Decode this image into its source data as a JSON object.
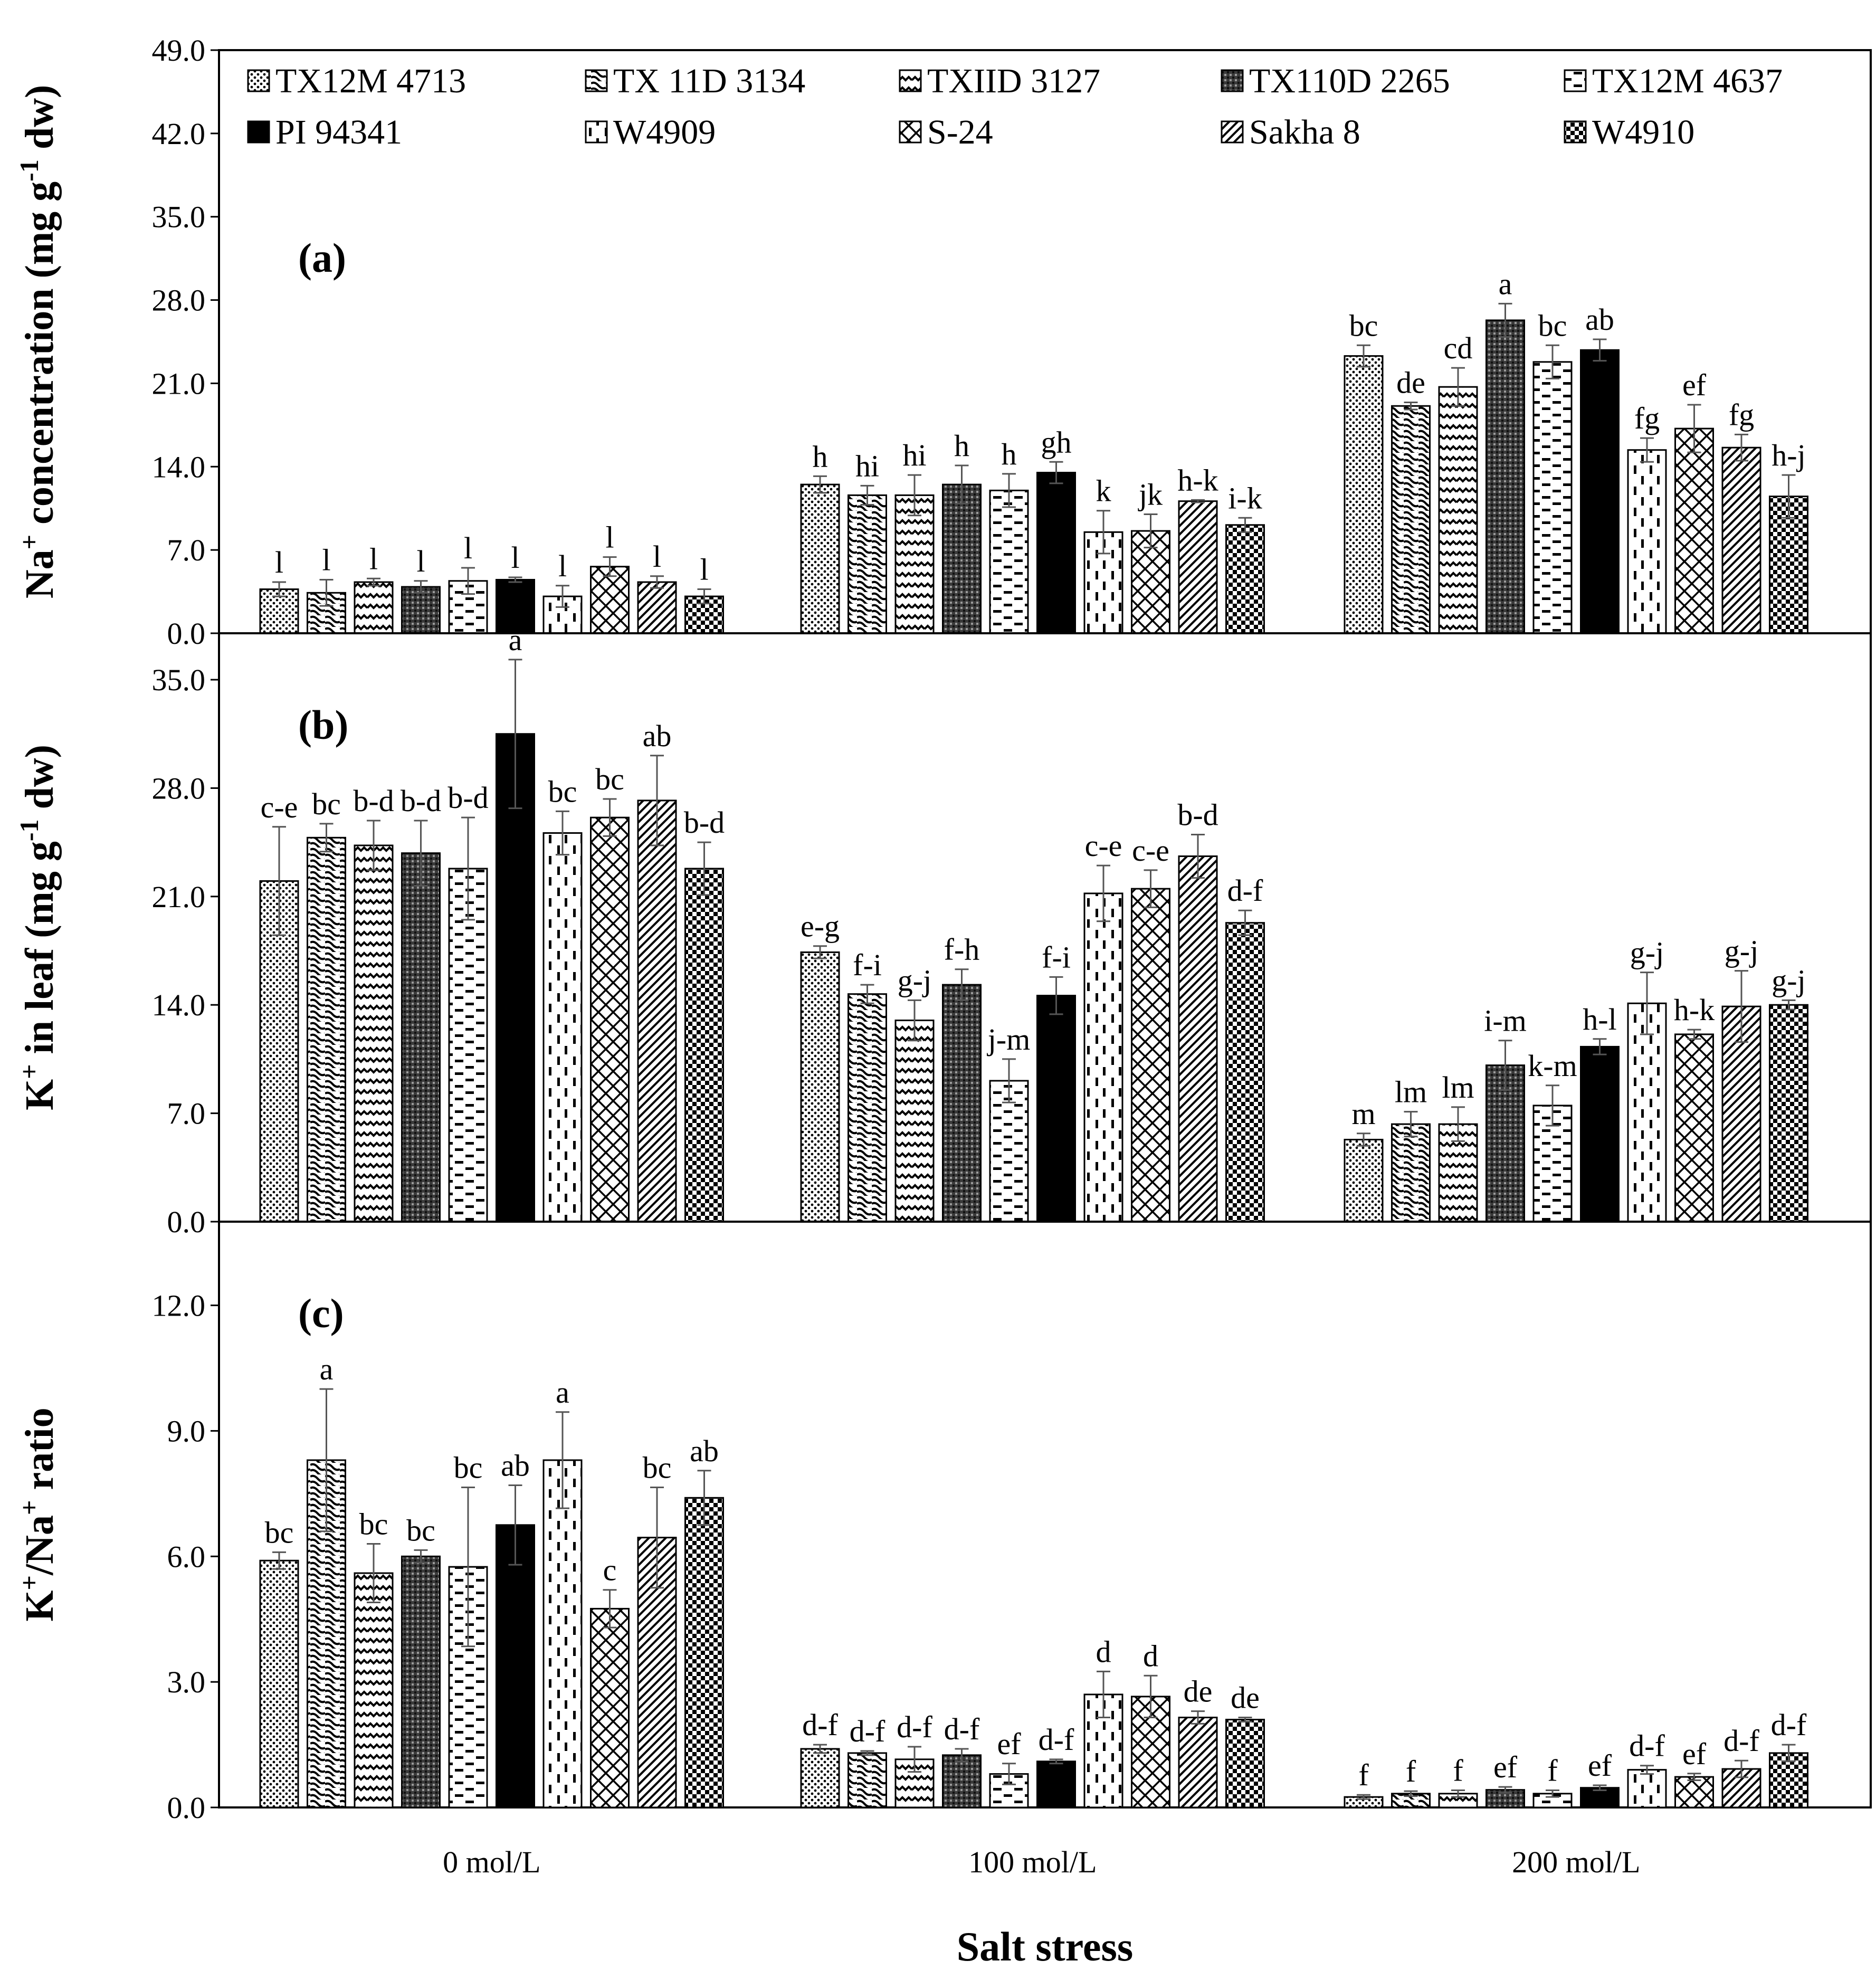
{
  "figure": {
    "x_title": "Salt stress",
    "groups": [
      "0 mol/L",
      "100 mol/L",
      "200 mol/L"
    ]
  },
  "legend": [
    {
      "name": "TX12M 4713",
      "pattern": "dots"
    },
    {
      "name": "TX 11D 3134",
      "pattern": "wave"
    },
    {
      "name": "TXIID 3127",
      "pattern": "zigzag"
    },
    {
      "name": "TX110D 2265",
      "pattern": "dark-grid"
    },
    {
      "name": "TX12M 4637",
      "pattern": "hdash"
    },
    {
      "name": "PI 94341",
      "pattern": "solid"
    },
    {
      "name": "W4909",
      "pattern": "vdash"
    },
    {
      "name": "S-24",
      "pattern": "cross"
    },
    {
      "name": "Sakha 8",
      "pattern": "diag"
    },
    {
      "name": "W4910",
      "pattern": "checker"
    }
  ],
  "colors": {
    "ink": "#000000",
    "grid_tick": "#000000",
    "errorbar": "#555555",
    "background": "#ffffff"
  },
  "chart_data": [
    {
      "type": "bar",
      "panel_label": "(a)",
      "ylabel_parts": [
        "Na",
        "+",
        " concentration (mg g",
        "-1",
        " dw)"
      ],
      "ylim": [
        0,
        49
      ],
      "yticks": [
        "0.0",
        "7.0",
        "14.0",
        "21.0",
        "28.0",
        "35.0",
        "42.0",
        "49.0"
      ],
      "categories": [
        "0 mol/L",
        "100 mol/L",
        "200 mol/L"
      ],
      "series": [
        {
          "name": "TX12M 4713",
          "values": [
            3.7,
            12.5,
            23.3
          ],
          "errors": [
            0.6,
            0.7,
            0.9
          ],
          "letters": [
            "l",
            "h",
            "bc"
          ]
        },
        {
          "name": "TX 11D 3134",
          "values": [
            3.4,
            11.6,
            19.1
          ],
          "errors": [
            1.1,
            0.8,
            0.3
          ],
          "letters": [
            "l",
            "hi",
            "de"
          ]
        },
        {
          "name": "TXIID 3127",
          "values": [
            4.3,
            11.6,
            20.7
          ],
          "errors": [
            0.3,
            1.7,
            1.6
          ],
          "letters": [
            "l",
            "hi",
            "cd"
          ]
        },
        {
          "name": "TX110D 2265",
          "values": [
            3.9,
            12.5,
            26.3
          ],
          "errors": [
            0.5,
            1.6,
            1.4
          ],
          "letters": [
            "l",
            "h",
            "a"
          ]
        },
        {
          "name": "TX12M 4637",
          "values": [
            4.4,
            12.0,
            22.8
          ],
          "errors": [
            1.1,
            1.4,
            1.4
          ],
          "letters": [
            "l",
            "h",
            "bc"
          ]
        },
        {
          "name": "PI 94341",
          "values": [
            4.5,
            13.5,
            23.8
          ],
          "errors": [
            0.2,
            0.9,
            0.9
          ],
          "letters": [
            "l",
            "gh",
            "ab"
          ]
        },
        {
          "name": "W4909",
          "values": [
            3.1,
            8.5,
            15.4
          ],
          "errors": [
            0.9,
            1.8,
            1.0
          ],
          "letters": [
            "l",
            "k",
            "fg"
          ]
        },
        {
          "name": "S-24",
          "values": [
            5.6,
            8.6,
            17.2
          ],
          "errors": [
            0.8,
            1.4,
            2.0
          ],
          "letters": [
            "l",
            "jk",
            "ef"
          ]
        },
        {
          "name": "Sakha 8",
          "values": [
            4.3,
            11.1,
            15.6
          ],
          "errors": [
            0.5,
            0.1,
            1.1
          ],
          "letters": [
            "l",
            "h-k",
            "fg"
          ]
        },
        {
          "name": "W4910",
          "values": [
            3.1,
            9.1,
            11.5
          ],
          "errors": [
            0.6,
            0.6,
            1.8
          ],
          "letters": [
            "l",
            "i-k",
            "h-j"
          ]
        }
      ]
    },
    {
      "type": "bar",
      "panel_label": "(b)",
      "ylabel_parts": [
        "K",
        "+",
        " in leaf (mg g",
        "-1",
        " dw)"
      ],
      "ylim": [
        0,
        38
      ],
      "yticks": [
        "0.0",
        "7.0",
        "14.0",
        "21.0",
        "28.0",
        "35.0"
      ],
      "categories": [
        "0 mol/L",
        "100 mol/L",
        "200 mol/L"
      ],
      "series": [
        {
          "name": "TX12M 4713",
          "values": [
            22.0,
            17.4,
            5.3
          ],
          "errors": [
            3.5,
            0.4,
            0.4
          ],
          "letters": [
            "c-e",
            "e-g",
            "m"
          ]
        },
        {
          "name": "TX 11D 3134",
          "values": [
            24.8,
            14.7,
            6.3
          ],
          "errors": [
            0.9,
            0.6,
            0.8
          ],
          "letters": [
            "bc",
            "f-i",
            "lm"
          ]
        },
        {
          "name": "TXIID 3127",
          "values": [
            24.3,
            13.0,
            6.3
          ],
          "errors": [
            1.6,
            1.3,
            1.1
          ],
          "letters": [
            "b-d",
            "g-j",
            "lm"
          ]
        },
        {
          "name": "TX110D 2265",
          "values": [
            23.8,
            15.3,
            10.1
          ],
          "errors": [
            2.1,
            1.0,
            1.6
          ],
          "letters": [
            "b-d",
            "f-h",
            "i-m"
          ]
        },
        {
          "name": "TX12M 4637",
          "values": [
            22.8,
            9.1,
            7.5
          ],
          "errors": [
            3.3,
            1.4,
            1.3
          ],
          "letters": [
            "b-d",
            "j-m",
            "k-m"
          ]
        },
        {
          "name": "PI 94341",
          "values": [
            31.5,
            14.6,
            11.3
          ],
          "errors": [
            4.8,
            1.2,
            0.5
          ],
          "letters": [
            "a",
            "f-i",
            "h-l"
          ]
        },
        {
          "name": "W4909",
          "values": [
            25.1,
            21.2,
            14.1
          ],
          "errors": [
            1.4,
            1.8,
            2.0
          ],
          "letters": [
            "bc",
            "c-e",
            "g-j"
          ]
        },
        {
          "name": "S-24",
          "values": [
            26.1,
            21.5,
            12.1
          ],
          "errors": [
            1.2,
            1.2,
            0.3
          ],
          "letters": [
            "bc",
            "c-e",
            "h-k"
          ]
        },
        {
          "name": "Sakha 8",
          "values": [
            27.2,
            23.6,
            13.9
          ],
          "errors": [
            2.9,
            1.4,
            2.3
          ],
          "letters": [
            "ab",
            "b-d",
            "g-j"
          ]
        },
        {
          "name": "W4910",
          "values": [
            22.8,
            19.3,
            14.0
          ],
          "errors": [
            1.7,
            0.8,
            0.3
          ],
          "letters": [
            "b-d",
            "d-f",
            "g-j"
          ]
        }
      ]
    },
    {
      "type": "bar",
      "panel_label": "(c)",
      "ylabel_parts": [
        "K",
        "+",
        "/Na",
        "+",
        " ratio"
      ],
      "ylim": [
        0,
        14
      ],
      "yticks": [
        "0.0",
        "3.0",
        "6.0",
        "9.0",
        "12.0"
      ],
      "categories": [
        "0 mol/L",
        "100 mol/L",
        "200 mol/L"
      ],
      "series": [
        {
          "name": "TX12M 4713",
          "values": [
            5.9,
            1.4,
            0.25
          ],
          "errors": [
            0.2,
            0.1,
            0.05
          ],
          "letters": [
            "bc",
            "d-f",
            "f"
          ]
        },
        {
          "name": "TX 11D 3134",
          "values": [
            8.3,
            1.3,
            0.33
          ],
          "errors": [
            1.7,
            0.05,
            0.06
          ],
          "letters": [
            "a",
            "d-f",
            "f"
          ]
        },
        {
          "name": "TXIID 3127",
          "values": [
            5.6,
            1.15,
            0.33
          ],
          "errors": [
            0.7,
            0.3,
            0.08
          ],
          "letters": [
            "bc",
            "d-f",
            "f"
          ]
        },
        {
          "name": "TX110D 2265",
          "values": [
            6.0,
            1.25,
            0.42
          ],
          "errors": [
            0.15,
            0.15,
            0.07
          ],
          "letters": [
            "bc",
            "d-f",
            "ef"
          ]
        },
        {
          "name": "TX12M 4637",
          "values": [
            5.75,
            0.8,
            0.33
          ],
          "errors": [
            1.9,
            0.25,
            0.08
          ],
          "letters": [
            "bc",
            "ef",
            "f"
          ]
        },
        {
          "name": "PI 94341",
          "values": [
            6.75,
            1.1,
            0.47
          ],
          "errors": [
            0.95,
            0.05,
            0.06
          ],
          "letters": [
            "ab",
            "d-f",
            "ef"
          ]
        },
        {
          "name": "W4909",
          "values": [
            8.3,
            2.7,
            0.9
          ],
          "errors": [
            1.15,
            0.55,
            0.1
          ],
          "letters": [
            "a",
            "d",
            "d-f"
          ]
        },
        {
          "name": "S-24",
          "values": [
            4.75,
            2.65,
            0.73
          ],
          "errors": [
            0.45,
            0.5,
            0.08
          ],
          "letters": [
            "c",
            "d",
            "ef"
          ]
        },
        {
          "name": "Sakha 8",
          "values": [
            6.45,
            2.15,
            0.92
          ],
          "errors": [
            1.2,
            0.15,
            0.2
          ],
          "letters": [
            "bc",
            "de",
            "d-f"
          ]
        },
        {
          "name": "W4910",
          "values": [
            7.4,
            2.1,
            1.3
          ],
          "errors": [
            0.65,
            0.05,
            0.2
          ],
          "letters": [
            "ab",
            "de",
            "d-f"
          ]
        }
      ]
    }
  ]
}
